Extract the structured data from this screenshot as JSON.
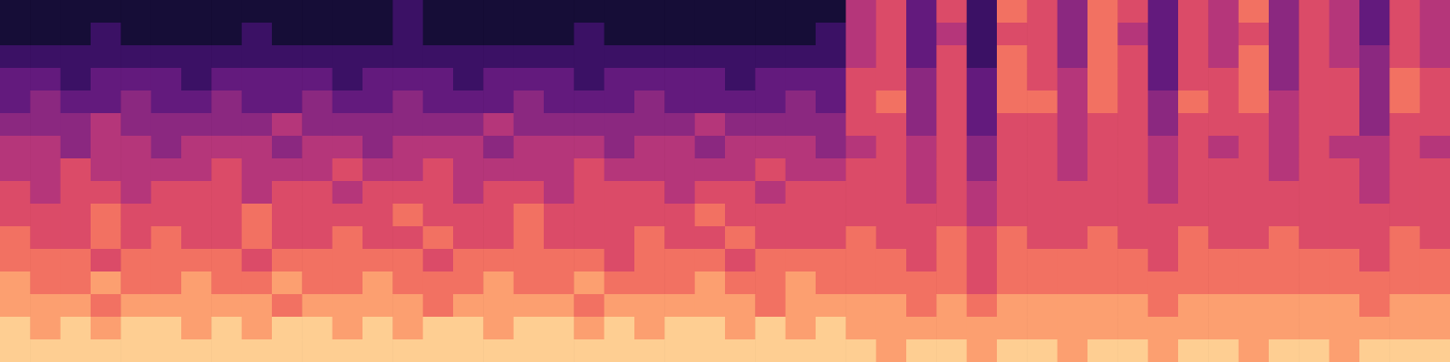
{
  "chart_data": {
    "type": "heatmap",
    "tick_labels": false,
    "zlim": [
      0,
      10
    ],
    "cells": [
      [
        1,
        1,
        1,
        1,
        1,
        1,
        1,
        1,
        1,
        1,
        1,
        1,
        1,
        2,
        1,
        1,
        1,
        1,
        1,
        1,
        1,
        1,
        1,
        1,
        1,
        1,
        1,
        1,
        5,
        6,
        3,
        6,
        2,
        7,
        6,
        4,
        7,
        6,
        3,
        6,
        5,
        7,
        4,
        6,
        5,
        3,
        6,
        5
      ],
      [
        1,
        1,
        1,
        2,
        1,
        1,
        1,
        1,
        2,
        1,
        1,
        1,
        1,
        2,
        1,
        1,
        1,
        1,
        1,
        2,
        1,
        1,
        1,
        1,
        1,
        1,
        1,
        2,
        5,
        6,
        3,
        5,
        2,
        6,
        6,
        4,
        7,
        5,
        3,
        6,
        5,
        6,
        4,
        6,
        5,
        3,
        6,
        5
      ],
      [
        2,
        2,
        2,
        2,
        2,
        2,
        2,
        2,
        2,
        2,
        2,
        2,
        2,
        2,
        2,
        2,
        2,
        2,
        2,
        2,
        2,
        2,
        2,
        2,
        2,
        2,
        2,
        2,
        5,
        6,
        3,
        6,
        2,
        7,
        6,
        4,
        7,
        6,
        3,
        6,
        5,
        7,
        4,
        6,
        5,
        4,
        6,
        5
      ],
      [
        3,
        3,
        2,
        3,
        3,
        3,
        2,
        3,
        3,
        3,
        3,
        2,
        3,
        3,
        3,
        2,
        3,
        3,
        3,
        2,
        3,
        3,
        3,
        3,
        2,
        3,
        3,
        3,
        6,
        6,
        4,
        6,
        3,
        7,
        6,
        5,
        7,
        6,
        3,
        6,
        6,
        7,
        4,
        6,
        6,
        4,
        7,
        6
      ],
      [
        3,
        4,
        3,
        3,
        4,
        3,
        3,
        4,
        3,
        3,
        4,
        3,
        3,
        4,
        3,
        3,
        3,
        4,
        3,
        3,
        3,
        4,
        3,
        3,
        3,
        3,
        4,
        3,
        6,
        7,
        4,
        6,
        3,
        7,
        7,
        5,
        7,
        6,
        4,
        7,
        6,
        7,
        5,
        6,
        6,
        4,
        7,
        6
      ],
      [
        4,
        4,
        4,
        5,
        4,
        4,
        4,
        4,
        4,
        5,
        4,
        4,
        4,
        4,
        4,
        4,
        5,
        4,
        4,
        4,
        4,
        4,
        4,
        5,
        4,
        4,
        4,
        4,
        6,
        6,
        4,
        6,
        3,
        6,
        6,
        5,
        6,
        6,
        4,
        6,
        6,
        6,
        5,
        6,
        6,
        4,
        6,
        6
      ],
      [
        5,
        5,
        4,
        5,
        5,
        4,
        5,
        5,
        5,
        4,
        5,
        5,
        4,
        5,
        5,
        5,
        4,
        5,
        5,
        5,
        4,
        5,
        5,
        4,
        5,
        5,
        5,
        4,
        5,
        6,
        5,
        6,
        4,
        6,
        6,
        5,
        6,
        6,
        5,
        6,
        5,
        6,
        5,
        6,
        5,
        5,
        6,
        5
      ],
      [
        5,
        5,
        6,
        5,
        5,
        5,
        5,
        6,
        5,
        5,
        5,
        6,
        5,
        5,
        6,
        5,
        5,
        5,
        5,
        6,
        5,
        5,
        5,
        5,
        5,
        6,
        5,
        5,
        6,
        6,
        5,
        6,
        4,
        6,
        6,
        5,
        6,
        6,
        5,
        6,
        6,
        6,
        5,
        6,
        6,
        5,
        6,
        6
      ],
      [
        6,
        5,
        6,
        6,
        5,
        6,
        6,
        6,
        5,
        6,
        6,
        5,
        6,
        6,
        6,
        5,
        6,
        6,
        5,
        6,
        6,
        6,
        5,
        6,
        6,
        5,
        6,
        6,
        6,
        6,
        5,
        6,
        5,
        6,
        6,
        6,
        6,
        6,
        5,
        6,
        6,
        6,
        6,
        6,
        6,
        5,
        6,
        6
      ],
      [
        6,
        6,
        6,
        7,
        6,
        6,
        6,
        6,
        7,
        6,
        6,
        6,
        6,
        7,
        6,
        6,
        6,
        7,
        6,
        6,
        6,
        6,
        6,
        7,
        6,
        6,
        6,
        6,
        6,
        6,
        6,
        6,
        5,
        6,
        6,
        6,
        6,
        6,
        6,
        6,
        6,
        6,
        6,
        6,
        6,
        6,
        6,
        6
      ],
      [
        7,
        6,
        6,
        7,
        6,
        7,
        6,
        6,
        7,
        6,
        6,
        7,
        6,
        6,
        7,
        6,
        6,
        7,
        6,
        6,
        6,
        7,
        6,
        6,
        7,
        6,
        6,
        6,
        7,
        6,
        6,
        7,
        6,
        7,
        6,
        6,
        7,
        6,
        6,
        7,
        6,
        6,
        7,
        6,
        6,
        6,
        7,
        6
      ],
      [
        7,
        7,
        7,
        6,
        7,
        7,
        7,
        7,
        6,
        7,
        7,
        7,
        7,
        7,
        6,
        7,
        7,
        7,
        7,
        7,
        6,
        7,
        7,
        7,
        6,
        7,
        7,
        7,
        7,
        7,
        6,
        7,
        6,
        7,
        7,
        7,
        7,
        7,
        6,
        7,
        7,
        7,
        7,
        7,
        7,
        6,
        7,
        7
      ],
      [
        8,
        7,
        7,
        8,
        7,
        7,
        8,
        7,
        7,
        8,
        7,
        7,
        8,
        7,
        7,
        7,
        8,
        7,
        7,
        8,
        7,
        7,
        7,
        8,
        7,
        7,
        8,
        7,
        7,
        7,
        7,
        7,
        6,
        7,
        7,
        7,
        7,
        7,
        7,
        7,
        7,
        7,
        7,
        7,
        7,
        7,
        7,
        7
      ],
      [
        8,
        8,
        8,
        7,
        8,
        8,
        8,
        8,
        8,
        7,
        8,
        8,
        8,
        8,
        7,
        8,
        8,
        8,
        8,
        7,
        8,
        8,
        8,
        8,
        8,
        7,
        8,
        8,
        8,
        8,
        7,
        8,
        7,
        8,
        8,
        8,
        8,
        8,
        7,
        8,
        8,
        8,
        8,
        8,
        8,
        7,
        8,
        8
      ],
      [
        9,
        8,
        9,
        8,
        9,
        9,
        8,
        9,
        8,
        9,
        9,
        8,
        9,
        8,
        9,
        9,
        8,
        9,
        9,
        8,
        9,
        8,
        9,
        9,
        8,
        9,
        8,
        9,
        8,
        8,
        8,
        8,
        8,
        8,
        8,
        8,
        8,
        8,
        8,
        8,
        8,
        8,
        8,
        8,
        8,
        8,
        8,
        8
      ],
      [
        9,
        9,
        9,
        9,
        9,
        9,
        9,
        9,
        9,
        9,
        9,
        9,
        9,
        9,
        9,
        9,
        9,
        9,
        9,
        9,
        9,
        9,
        9,
        9,
        9,
        9,
        9,
        9,
        9,
        8,
        9,
        9,
        8,
        9,
        9,
        8,
        9,
        9,
        8,
        9,
        9,
        8,
        9,
        9,
        8,
        9,
        9,
        9
      ]
    ]
  }
}
